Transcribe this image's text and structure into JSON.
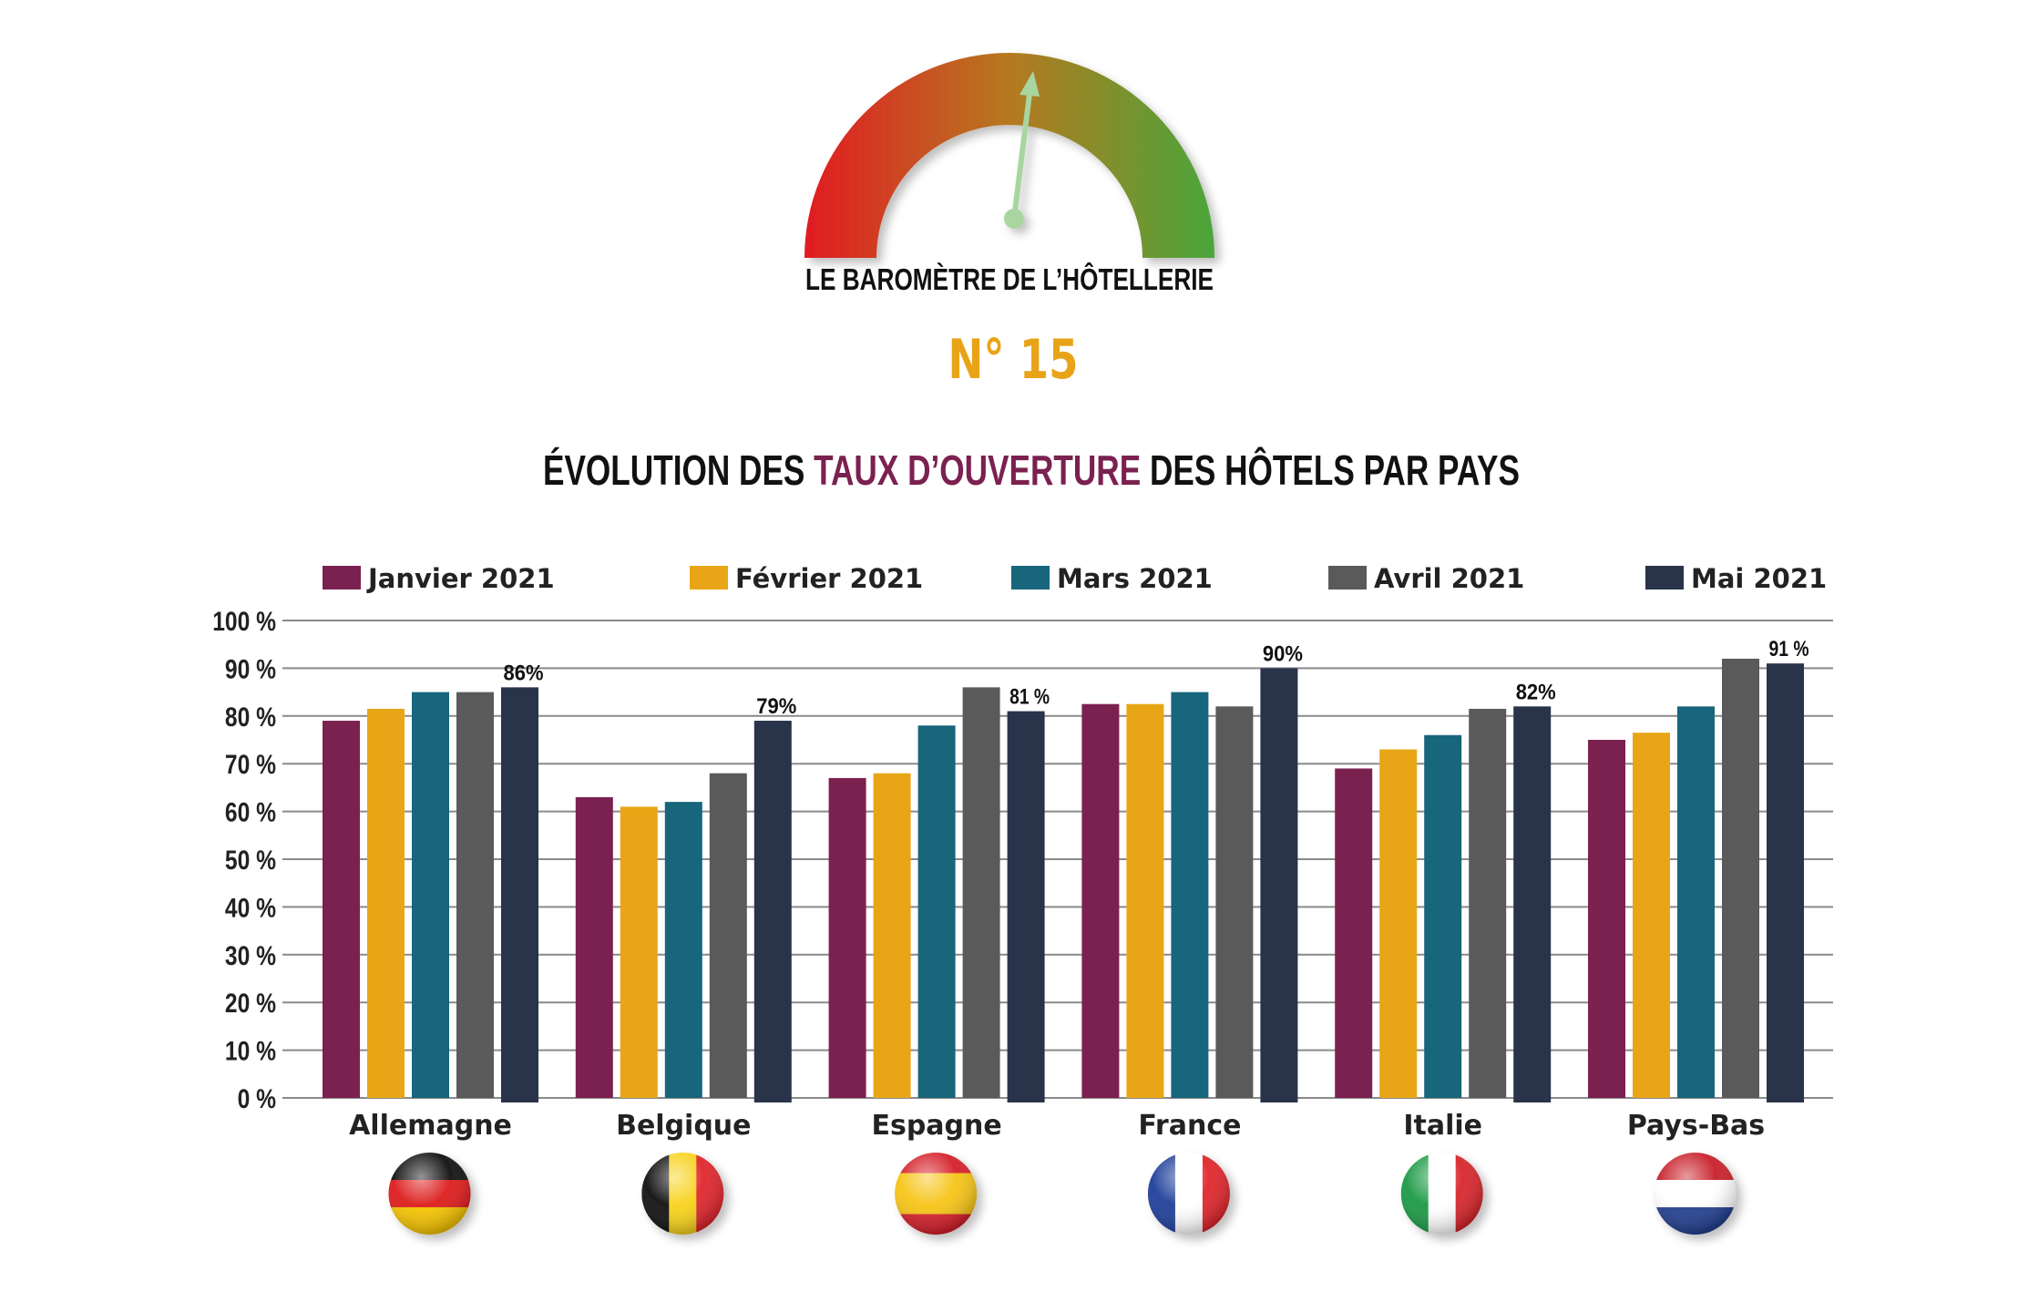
{
  "header": {
    "gauge_title": "LE BAROMÈTRE DE L’HÔTELLERIE",
    "issue": "N° 15",
    "issue_color": "#e8a317",
    "gauge_icon": "barometer-gauge-icon",
    "gauge_colors": [
      "#e11b22",
      "#b5791f",
      "#4aa63b"
    ],
    "needle_color": "#a8d5a0"
  },
  "chart_title": {
    "part1": "ÉVOLUTION DES ",
    "highlight": "TAUX D’OUVERTURE",
    "part2": " DES HÔTELS PAR PAYS",
    "highlight_color": "#7b2150"
  },
  "chart_data": {
    "type": "bar",
    "categories": [
      "Allemagne",
      "Belgique",
      "Espagne",
      "France",
      "Italie",
      "Pays-Bas"
    ],
    "series": [
      {
        "name": "Janvier 2021",
        "color": "#7b2150",
        "values": [
          79,
          63,
          67,
          82.5,
          69,
          75
        ]
      },
      {
        "name": "Février 2021",
        "color": "#e8a617",
        "values": [
          81.5,
          61,
          68,
          82.5,
          73,
          76.5
        ]
      },
      {
        "name": "Mars 2021",
        "color": "#17667b",
        "values": [
          85,
          62,
          78,
          85,
          76,
          82
        ]
      },
      {
        "name": "Avril 2021",
        "color": "#5a5a5a",
        "values": [
          85,
          68,
          86,
          82,
          81.5,
          92
        ]
      },
      {
        "name": "Mai 2021",
        "color": "#29334a",
        "values": [
          86,
          79,
          81,
          90,
          82,
          91
        ]
      }
    ],
    "data_labels": [
      "86%",
      "79%",
      "81 %",
      "90%",
      "82%",
      "91 %"
    ],
    "y_ticks": [
      "0 %",
      "10 %",
      "20 %",
      "30 %",
      "40 %",
      "50 %",
      "60 %",
      "70 %",
      "80 %",
      "90 %",
      "100 %"
    ],
    "ylim": [
      0,
      100
    ],
    "grid": true,
    "legend_position": "top",
    "xlabel": "",
    "ylabel": ""
  },
  "flags": [
    {
      "country": "Allemagne",
      "icon": "germany-flag-icon",
      "dir": "h",
      "colors": [
        "#111111",
        "#dd1c1c",
        "#f5c400"
      ]
    },
    {
      "country": "Belgique",
      "icon": "belgium-flag-icon",
      "dir": "v",
      "colors": [
        "#111111",
        "#f7d21b",
        "#e0262c"
      ]
    },
    {
      "country": "Espagne",
      "icon": "spain-flag-icon",
      "dir": "h",
      "colors": [
        "#d5202a",
        "#f6c416",
        "#f6c416",
        "#d5202a"
      ]
    },
    {
      "country": "France",
      "icon": "france-flag-icon",
      "dir": "v",
      "colors": [
        "#1f3f9a",
        "#ffffff",
        "#e0262c"
      ]
    },
    {
      "country": "Italie",
      "icon": "italy-flag-icon",
      "dir": "v",
      "colors": [
        "#1c9a45",
        "#ffffff",
        "#d8262c"
      ]
    },
    {
      "country": "Pays-Bas",
      "icon": "netherlands-flag-icon",
      "dir": "h",
      "colors": [
        "#c9202a",
        "#ffffff",
        "#23408f"
      ]
    }
  ]
}
